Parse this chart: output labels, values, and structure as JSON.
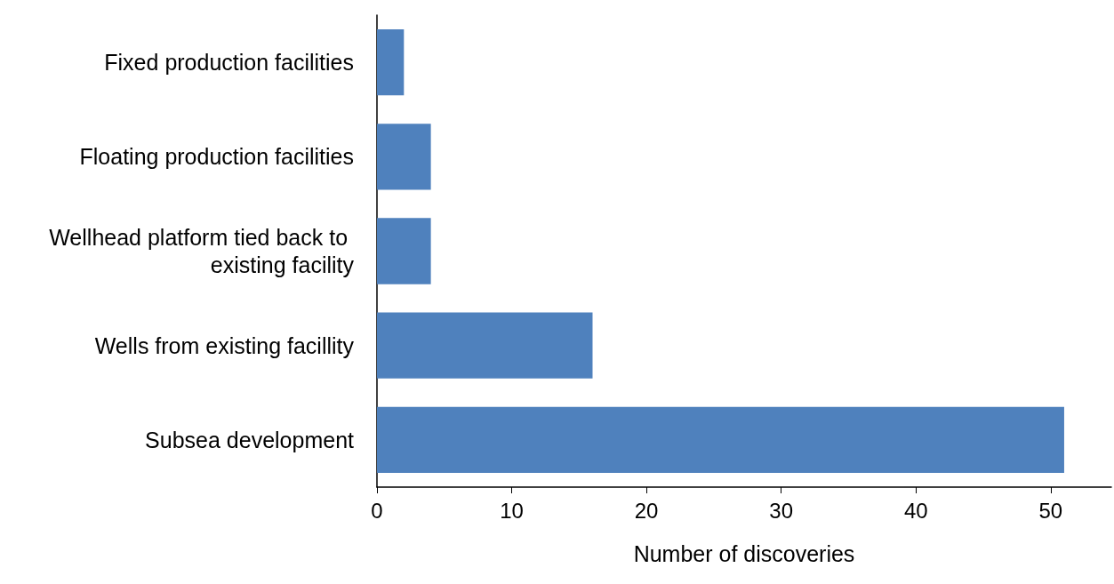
{
  "chart_data": {
    "type": "bar",
    "orientation": "horizontal",
    "xlabel": "Number of discoveries",
    "categories": [
      "Fixed production facilities",
      "Floating production facilities",
      "Wellhead platform tied back to existing facility",
      "Wells from existing facillity",
      "Subsea development"
    ],
    "values": [
      2,
      4,
      4,
      16,
      51
    ],
    "color": "#4f81bd",
    "xlim": [
      0,
      54.5
    ],
    "xticks": [
      0,
      10,
      20,
      30,
      40,
      50
    ],
    "grid": false
  }
}
